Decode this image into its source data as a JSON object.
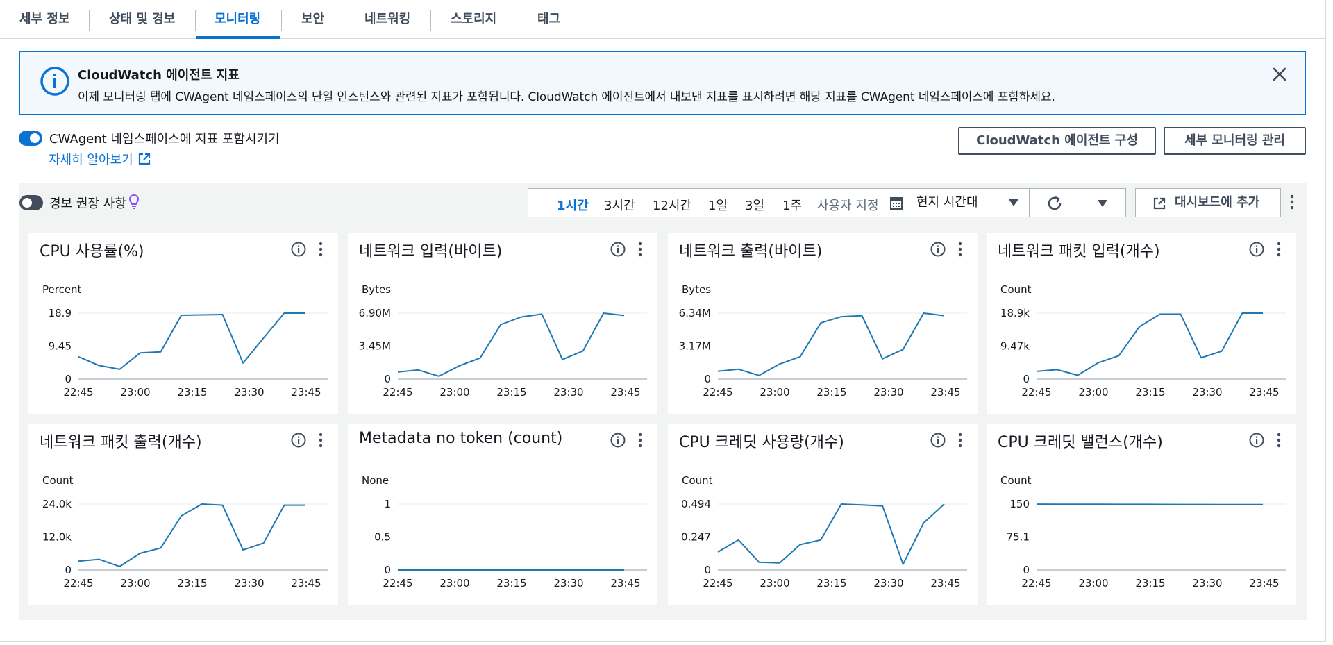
{
  "tabs": [
    {
      "label": "세부 정보",
      "active": false
    },
    {
      "label": "상태 및 경보",
      "active": false
    },
    {
      "label": "모니터링",
      "active": true
    },
    {
      "label": "보안",
      "active": false
    },
    {
      "label": "네트워킹",
      "active": false
    },
    {
      "label": "스토리지",
      "active": false
    },
    {
      "label": "태그",
      "active": false
    }
  ],
  "banner": {
    "title": "CloudWatch 에이전트 지표",
    "text": "이제 모니터링 탭에 CWAgent 네임스페이스의 단일 인스턴스와 관련된 지표가 포함됩니다. CloudWatch 에이전트에서 내보낸 지표를 표시하려면 해당 지표를 CWAgent 네임스페이스에 포함하세요."
  },
  "cwagent_toggle": {
    "label": "CWAgent 네임스페이스에 지표 포함시키기",
    "on": true
  },
  "learn_more": "자세히 알아보기",
  "buttons": {
    "configure": "CloudWatch 에이전트 구성",
    "manage": "세부 모니터링 관리"
  },
  "alarm_toggle": {
    "label": "경보 권장 사항",
    "on": false
  },
  "time_range": {
    "options": [
      "1시간",
      "3시간",
      "12시간",
      "1일",
      "3일",
      "1주"
    ],
    "selected": "1시간",
    "custom": "사용자 지정"
  },
  "timezone": "현지 시간대",
  "add_to_dashboard": "대시보드에 추가",
  "colors": {
    "accent": "#0972d3",
    "series": "#1f78b4"
  },
  "widgets": [
    {
      "title": "CPU 사용률(%)",
      "unit": "Percent",
      "yticks": [
        "18.9",
        "9.45",
        "0"
      ],
      "ymax": 18.9,
      "values": [
        6.4,
        3.9,
        2.8,
        7.5,
        7.8,
        18.3,
        18.4,
        18.5,
        4.6,
        11.8,
        18.9,
        18.9
      ]
    },
    {
      "title": "네트워크 입력(바이트)",
      "unit": "Bytes",
      "yticks": [
        "6.90M",
        "3.45M",
        "0"
      ],
      "ymax": 6.9,
      "values": [
        0.75,
        0.95,
        0.3,
        1.4,
        2.2,
        5.7,
        6.5,
        6.8,
        2.05,
        2.95,
        6.9,
        6.65
      ]
    },
    {
      "title": "네트워크 출력(바이트)",
      "unit": "Bytes",
      "yticks": [
        "6.34M",
        "3.17M",
        "0"
      ],
      "ymax": 6.34,
      "values": [
        0.75,
        0.95,
        0.35,
        1.45,
        2.15,
        5.4,
        6.0,
        6.1,
        1.95,
        2.85,
        6.34,
        6.1
      ]
    },
    {
      "title": "네트워크 패킷 입력(개수)",
      "unit": "Count",
      "yticks": [
        "18.9k",
        "9.47k",
        "0"
      ],
      "ymax": 18.9,
      "values": [
        2.2,
        2.7,
        1.1,
        4.7,
        6.7,
        15.0,
        18.6,
        18.6,
        6.1,
        8.0,
        18.9,
        18.9
      ]
    },
    {
      "title": "네트워크 패킷 출력(개수)",
      "unit": "Count",
      "yticks": [
        "24.0k",
        "12.0k",
        "0"
      ],
      "ymax": 24.0,
      "values": [
        3.2,
        3.9,
        1.3,
        6.1,
        8.0,
        19.7,
        24.0,
        23.6,
        7.3,
        9.8,
        23.6,
        23.6
      ]
    },
    {
      "title": "Metadata no token (count)",
      "unit": "None",
      "yticks": [
        "1",
        "0.5",
        "0"
      ],
      "ymax": 1,
      "values": [
        0,
        0,
        0,
        0,
        0,
        0,
        0,
        0,
        0,
        0,
        0,
        0
      ]
    },
    {
      "title": "CPU 크레딧 사용량(개수)",
      "unit": "Count",
      "yticks": [
        "0.494",
        "0.247",
        "0"
      ],
      "ymax": 0.494,
      "values": [
        0.135,
        0.225,
        0.058,
        0.053,
        0.19,
        0.225,
        0.494,
        0.488,
        0.48,
        0.043,
        0.353,
        0.494
      ]
    },
    {
      "title": "CPU 크레딧 밸런스(개수)",
      "unit": "Count",
      "yticks": [
        "150",
        "75.1",
        "0"
      ],
      "ymax": 150.2,
      "values": [
        150,
        149.9,
        149.8,
        149.7,
        149.6,
        149.5,
        149.4,
        149.3,
        149.2,
        149.1,
        149.0,
        148.9
      ]
    }
  ],
  "xticks": [
    "22:45",
    "23:00",
    "23:15",
    "23:30",
    "23:45"
  ]
}
